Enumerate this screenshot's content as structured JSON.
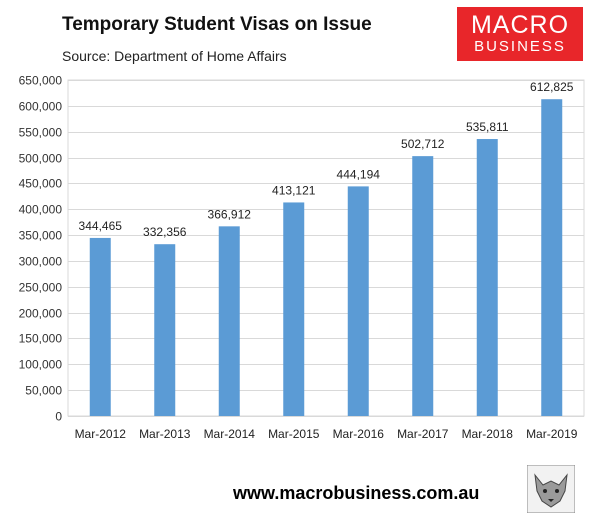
{
  "header": {
    "title": "Temporary Student Visas on Issue",
    "source": "Source: Department of Home Affairs"
  },
  "logo": {
    "line1": "MACRO",
    "line2": "BUSINESS",
    "color": "#e8262a"
  },
  "footer": {
    "url": "www.macrobusiness.com.au",
    "mascot_icon": "wolf-icon"
  },
  "chart_data": {
    "type": "bar",
    "title": "Temporary Student Visas on Issue",
    "subtitle": "Source: Department of Home Affairs",
    "xlabel": "",
    "ylabel": "",
    "categories": [
      "Mar-2012",
      "Mar-2013",
      "Mar-2014",
      "Mar-2015",
      "Mar-2016",
      "Mar-2017",
      "Mar-2018",
      "Mar-2019"
    ],
    "values": [
      344465,
      332356,
      366912,
      413121,
      444194,
      502712,
      535811,
      612825
    ],
    "data_labels": [
      "344,465",
      "332,356",
      "366,912",
      "413,121",
      "444,194",
      "502,712",
      "535,811",
      "612,825"
    ],
    "ylim": [
      0,
      650000
    ],
    "yticks": [
      0,
      50000,
      100000,
      150000,
      200000,
      250000,
      300000,
      350000,
      400000,
      450000,
      500000,
      550000,
      600000,
      650000
    ],
    "ytick_labels": [
      "0",
      "50,000",
      "100,000",
      "150,000",
      "200,000",
      "250,000",
      "300,000",
      "350,000",
      "400,000",
      "450,000",
      "500,000",
      "550,000",
      "600,000",
      "650,000"
    ],
    "grid": true,
    "bar_color": "#5b9bd5",
    "grid_color": "#d9d9d9"
  }
}
